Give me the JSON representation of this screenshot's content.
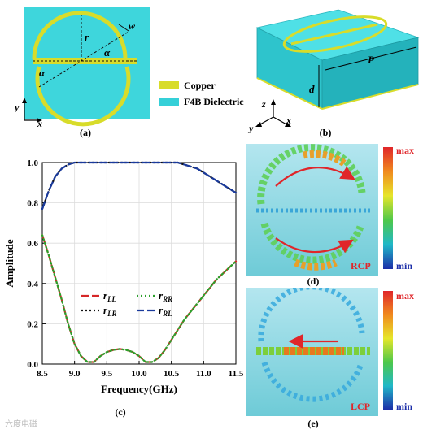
{
  "panel_a": {
    "labels": {
      "r": "r",
      "w": "w",
      "alpha_top": "α",
      "alpha_bottom": "α",
      "axis_y": "y",
      "axis_x": "x"
    },
    "caption": "(a)",
    "colors": {
      "dielectric": "#3ed6dc",
      "copper": "#d8dc2a"
    }
  },
  "legend": {
    "items": [
      {
        "label": "Copper",
        "color": "#d8dc2a"
      },
      {
        "label": "F4B Dielectric",
        "color": "#35d0d8"
      }
    ]
  },
  "panel_b": {
    "labels": {
      "P": "P",
      "d": "d",
      "axis_z": "z",
      "axis_y": "y",
      "axis_x": "x"
    },
    "caption": "(b)"
  },
  "chart_data": {
    "type": "line",
    "xlabel": "Frequency(GHz)",
    "ylabel": "Amplitude",
    "xlim": [
      8.5,
      11.5
    ],
    "ylim": [
      0.0,
      1.0
    ],
    "xticks": [
      "8.5",
      "9.0",
      "9.5",
      "10.0",
      "10.5",
      "11.0",
      "11.5"
    ],
    "yticks": [
      "0.0",
      "0.2",
      "0.4",
      "0.6",
      "0.8",
      "1.0"
    ],
    "grid": true,
    "x": [
      8.5,
      8.6,
      8.7,
      8.8,
      8.9,
      9.0,
      9.1,
      9.2,
      9.3,
      9.4,
      9.5,
      9.6,
      9.7,
      9.8,
      9.9,
      10.0,
      10.1,
      10.2,
      10.3,
      10.4,
      10.5,
      10.6,
      10.7,
      10.8,
      10.9,
      11.0,
      11.1,
      11.2,
      11.3,
      11.4,
      11.5
    ],
    "series": [
      {
        "name": "r_LL",
        "color": "#d62728",
        "dash": "long",
        "values": [
          0.64,
          0.54,
          0.43,
          0.32,
          0.2,
          0.1,
          0.04,
          0.01,
          0.01,
          0.04,
          0.06,
          0.07,
          0.075,
          0.07,
          0.06,
          0.04,
          0.01,
          0.01,
          0.03,
          0.07,
          0.12,
          0.17,
          0.22,
          0.26,
          0.3,
          0.34,
          0.38,
          0.42,
          0.45,
          0.48,
          0.51
        ]
      },
      {
        "name": "r_RR",
        "color": "#2ca02c",
        "dash": "dot",
        "values": [
          0.64,
          0.54,
          0.43,
          0.32,
          0.2,
          0.1,
          0.04,
          0.01,
          0.01,
          0.04,
          0.06,
          0.07,
          0.075,
          0.07,
          0.06,
          0.04,
          0.01,
          0.01,
          0.03,
          0.07,
          0.12,
          0.17,
          0.22,
          0.26,
          0.3,
          0.34,
          0.38,
          0.42,
          0.45,
          0.48,
          0.51
        ]
      },
      {
        "name": "r_LR",
        "color": "#111111",
        "dash": "dot",
        "values": [
          0.77,
          0.86,
          0.93,
          0.97,
          0.99,
          1.0,
          1.0,
          1.0,
          1.0,
          1.0,
          1.0,
          1.0,
          1.0,
          1.0,
          1.0,
          1.0,
          1.0,
          1.0,
          1.0,
          1.0,
          1.0,
          1.0,
          0.99,
          0.98,
          0.97,
          0.95,
          0.93,
          0.91,
          0.89,
          0.87,
          0.85
        ]
      },
      {
        "name": "r_RL",
        "color": "#1a3a9c",
        "dash": "long",
        "values": [
          0.77,
          0.86,
          0.93,
          0.97,
          0.99,
          1.0,
          1.0,
          1.0,
          1.0,
          1.0,
          1.0,
          1.0,
          1.0,
          1.0,
          1.0,
          1.0,
          1.0,
          1.0,
          1.0,
          1.0,
          1.0,
          1.0,
          0.99,
          0.98,
          0.97,
          0.95,
          0.93,
          0.91,
          0.89,
          0.87,
          0.85
        ]
      }
    ],
    "legend_labels": [
      {
        "base": "r",
        "sub": "LL"
      },
      {
        "base": "r",
        "sub": "RR"
      },
      {
        "base": "r",
        "sub": "LR"
      },
      {
        "base": "r",
        "sub": "RL"
      }
    ],
    "legend_placement": "bottom-center",
    "caption": "(c)"
  },
  "panel_d": {
    "colorbar": {
      "max": "max",
      "min": "min"
    },
    "mode_label": "RCP",
    "caption": "(d)"
  },
  "panel_e": {
    "colorbar": {
      "max": "max",
      "min": "min"
    },
    "mode_label": "LCP",
    "caption": "(e)"
  },
  "watermark": "六度电磁"
}
